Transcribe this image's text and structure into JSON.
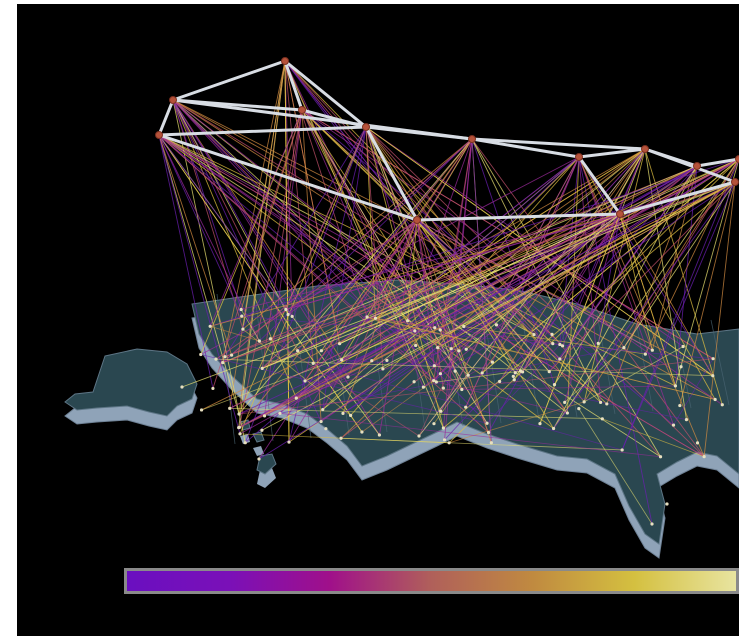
{
  "scene": {
    "kind": "3d-network-visualization-over-us-map",
    "map_fill": "#2a4750",
    "map_side": "#8fa3b8",
    "backbone_color": "#d8dde4",
    "node_color": "#b5523a"
  },
  "colorbar": {
    "stops": [
      "#6a0fc0",
      "#7a10b8",
      "#a0108a",
      "#b0605a",
      "#c08a40",
      "#d4c040",
      "#e8e4a0"
    ]
  },
  "palette": {
    "panel_background": "#000000",
    "page_background": "#ffffff",
    "link_colors": [
      "#6b1fb0",
      "#9a2a9a",
      "#c0506a",
      "#d08a40",
      "#e0c040",
      "#e8e070"
    ]
  }
}
